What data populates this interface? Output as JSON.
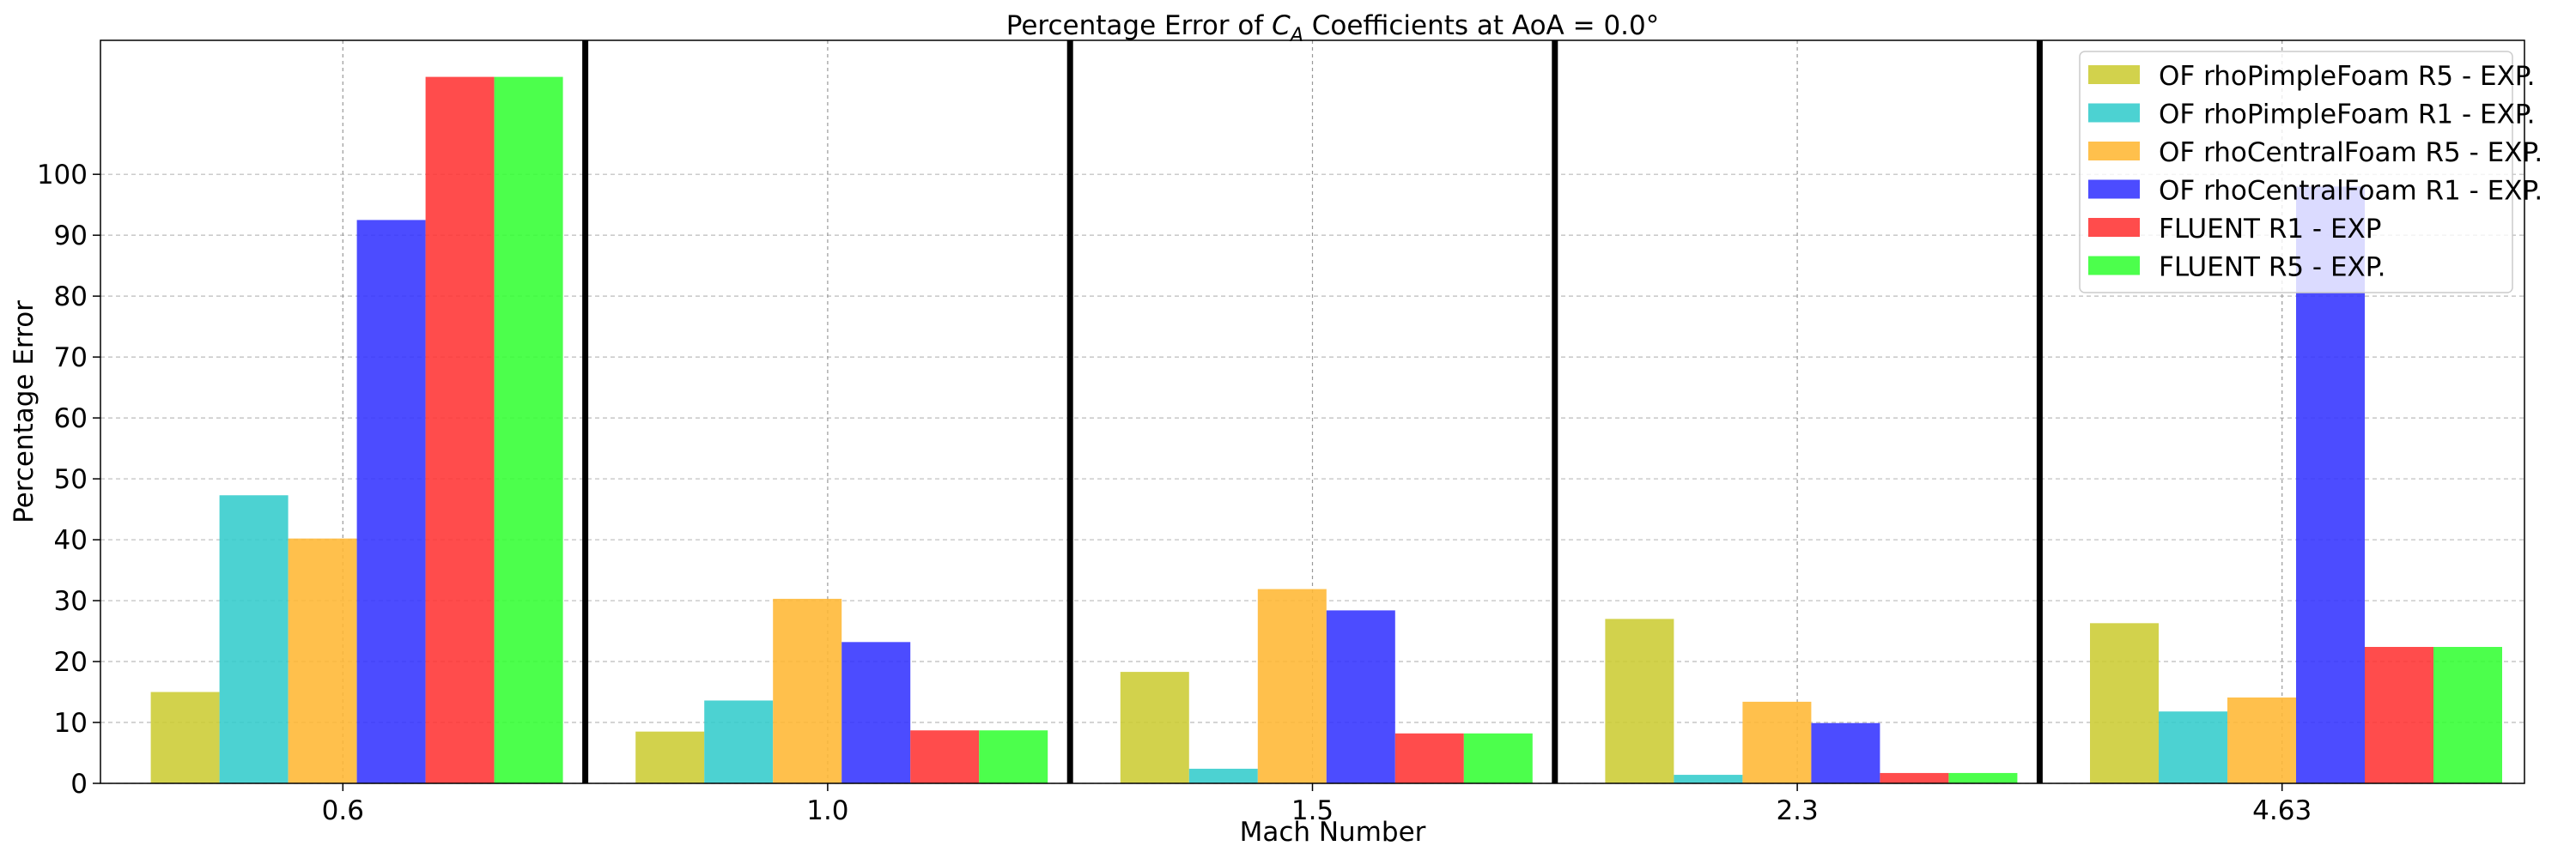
{
  "chart_data": {
    "type": "bar",
    "title": {
      "prefix": "Percentage Error of ",
      "symbol": "C",
      "subscript": "A",
      "suffix": " Coefficients at AoA = 0.0°"
    },
    "xlabel": "Mach Number",
    "ylabel": "Percentage Error",
    "categories": [
      "0.6",
      "1.0",
      "1.5",
      "2.3",
      "4.63"
    ],
    "ylim": [
      0,
      122
    ],
    "yticks": [
      0,
      10,
      20,
      30,
      40,
      50,
      60,
      70,
      80,
      90,
      100
    ],
    "grid": true,
    "legend_position": "top-right",
    "series": [
      {
        "name": "OF rhoPimpleFoam R5 - EXP.",
        "color": "#cccc33",
        "values": [
          15.0,
          8.5,
          18.3,
          27.0,
          26.3
        ]
      },
      {
        "name": "OF rhoPimpleFoam R1 - EXP.",
        "color": "#33cccc",
        "values": [
          47.3,
          13.6,
          2.4,
          1.4,
          11.8
        ]
      },
      {
        "name": "OF rhoCentralFoam R5 - EXP.",
        "color": "#ffb733",
        "values": [
          40.2,
          30.3,
          31.9,
          13.4,
          14.1
        ]
      },
      {
        "name": "OF rhoCentralFoam R1 - EXP.",
        "color": "#3333ff",
        "values": [
          92.5,
          23.2,
          28.4,
          9.9,
          98.0
        ]
      },
      {
        "name": "FLUENT R1 - EXP",
        "color": "#ff3333",
        "values": [
          116.0,
          8.7,
          8.2,
          1.7,
          22.4
        ]
      },
      {
        "name": "FLUENT R5 - EXP.",
        "color": "#33ff33",
        "values": [
          116.0,
          8.7,
          8.2,
          1.7,
          22.4
        ]
      }
    ]
  }
}
